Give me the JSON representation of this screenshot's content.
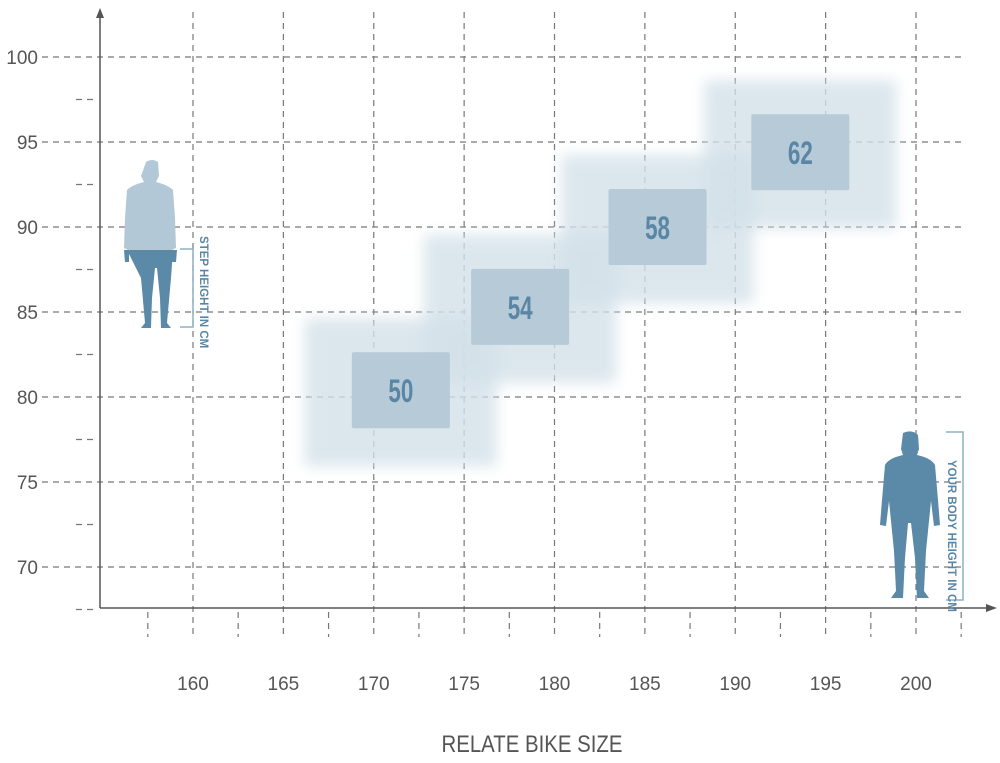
{
  "chart_data": {
    "type": "scatter",
    "title": "",
    "xlabel": "RELATE BIKE SIZE",
    "ylabel": "",
    "xlim": [
      155,
      202
    ],
    "ylim": [
      67.5,
      102
    ],
    "x_ticks": [
      160,
      165,
      170,
      175,
      180,
      185,
      190,
      195,
      200
    ],
    "y_ticks": [
      70,
      75,
      80,
      85,
      90,
      95,
      100
    ],
    "grid": true,
    "points": [
      {
        "label": "50",
        "x": 171.5,
        "y": 80.4
      },
      {
        "label": "54",
        "x": 178.1,
        "y": 85.3
      },
      {
        "label": "58",
        "x": 185.7,
        "y": 90.0
      },
      {
        "label": "62",
        "x": 193.6,
        "y": 94.4
      }
    ],
    "annotations": {
      "step_height": "STEP HEIGHT IN CM",
      "body_height": "YOUR BODY HEIGHT IN CM"
    },
    "colors": {
      "box": "#b7cad8",
      "halo": "#d3e1e9",
      "text": "#5a86a5",
      "figure": "#5b89a8",
      "figure_light": "#b3c8d6",
      "axis": "#555555"
    }
  }
}
